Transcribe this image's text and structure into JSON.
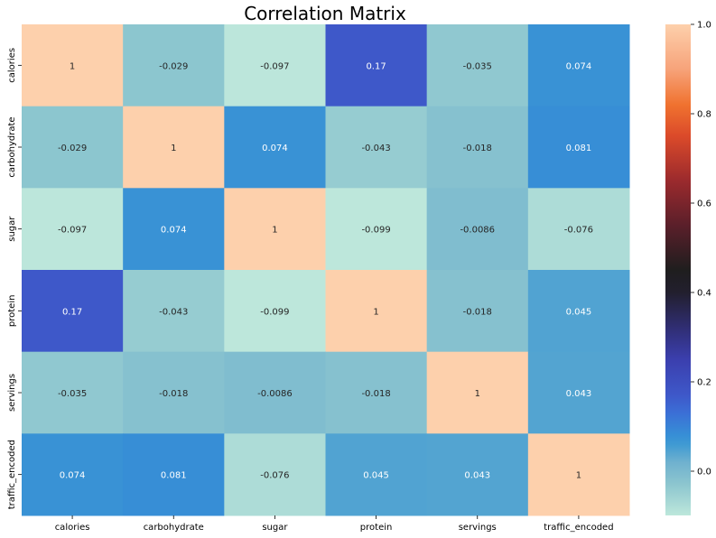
{
  "chart_data": {
    "type": "heatmap",
    "title": "Correlation Matrix",
    "variables": [
      "calories",
      "carbohydrate",
      "sugar",
      "protein",
      "servings",
      "traffic_encoded"
    ],
    "matrix": [
      [
        1,
        -0.029,
        -0.097,
        0.17,
        -0.035,
        0.074
      ],
      [
        -0.029,
        1,
        0.074,
        -0.043,
        -0.018,
        0.081
      ],
      [
        -0.097,
        0.074,
        1,
        -0.099,
        -0.0086,
        -0.076
      ],
      [
        0.17,
        -0.043,
        -0.099,
        1,
        -0.018,
        0.045
      ],
      [
        -0.035,
        -0.018,
        -0.0086,
        -0.018,
        1,
        0.043
      ],
      [
        0.074,
        0.081,
        -0.076,
        0.045,
        0.043,
        1
      ]
    ],
    "cell_labels": [
      [
        "1",
        "-0.029",
        "-0.097",
        "0.17",
        "-0.035",
        "0.074"
      ],
      [
        "-0.029",
        "1",
        "0.074",
        "-0.043",
        "-0.018",
        "0.081"
      ],
      [
        "-0.097",
        "0.074",
        "1",
        "-0.099",
        "-0.0086",
        "-0.076"
      ],
      [
        "0.17",
        "-0.043",
        "-0.099",
        "1",
        "-0.018",
        "0.045"
      ],
      [
        "-0.035",
        "-0.018",
        "-0.0086",
        "-0.018",
        "1",
        "0.043"
      ],
      [
        "0.074",
        "0.081",
        "-0.076",
        "0.045",
        "0.043",
        "1"
      ]
    ],
    "colormap": "icefire",
    "vmin": -0.099,
    "vmax": 1,
    "colorbar": {
      "ticks": [
        0.0,
        0.2,
        0.4,
        0.6,
        0.8,
        1.0
      ],
      "tick_labels": [
        "0.0",
        "0.2",
        "0.4",
        "0.6",
        "0.8",
        "1.0"
      ],
      "placement": "right"
    },
    "colormap_stops": [
      {
        "v": -0.099,
        "color": "#bde7db"
      },
      {
        "v": -0.03,
        "color": "#8dc6cf"
      },
      {
        "v": 0.02,
        "color": "#6fb1cf"
      },
      {
        "v": 0.06,
        "color": "#3f9ad3"
      },
      {
        "v": 0.08,
        "color": "#378fd6"
      },
      {
        "v": 0.13,
        "color": "#3b6fd6"
      },
      {
        "v": 0.17,
        "color": "#3e58c9"
      },
      {
        "v": 0.25,
        "color": "#3b3fae"
      },
      {
        "v": 0.32,
        "color": "#302e74"
      },
      {
        "v": 0.4,
        "color": "#221f2e"
      },
      {
        "v": 0.45,
        "color": "#1f1e1e"
      },
      {
        "v": 0.55,
        "color": "#5a1f2a"
      },
      {
        "v": 0.65,
        "color": "#9b2a2d"
      },
      {
        "v": 0.75,
        "color": "#db4a2a"
      },
      {
        "v": 0.82,
        "color": "#f0722f"
      },
      {
        "v": 0.9,
        "color": "#f7a37a"
      },
      {
        "v": 1.0,
        "color": "#fdd0ac"
      }
    ]
  }
}
